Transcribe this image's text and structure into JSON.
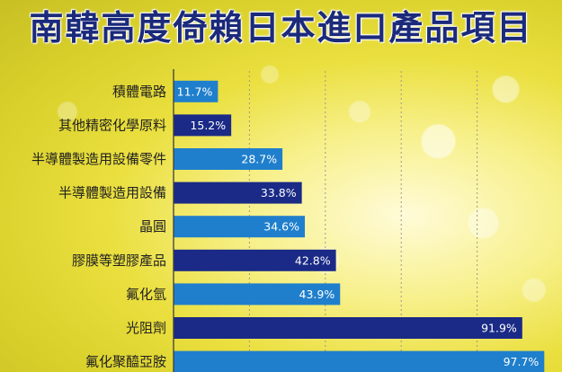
{
  "title": "南韓高度倚賴日本進口產品項目",
  "chart_data": {
    "type": "bar",
    "orientation": "horizontal",
    "title": "南韓高度倚賴日本進口產品項目",
    "xlabel": "",
    "ylabel": "",
    "xlim": [
      0,
      100
    ],
    "grid": true,
    "categories": [
      "積體電路",
      "其他精密化學原料",
      "半導體製造用設備零件",
      "半導體製造用設備",
      "晶圓",
      "膠膜等塑膠產品",
      "氟化氫",
      "光阻劑",
      "氟化聚醯亞胺"
    ],
    "values": [
      11.7,
      15.2,
      28.7,
      33.8,
      34.6,
      42.8,
      43.9,
      91.9,
      97.7
    ],
    "value_labels": [
      "11.7%",
      "15.2%",
      "28.7%",
      "33.8%",
      "34.6%",
      "42.8%",
      "43.9%",
      "91.9%",
      "97.7%"
    ],
    "colors": [
      "#1f7fcc",
      "#1a2a86",
      "#1f7fcc",
      "#1a2a86",
      "#1f7fcc",
      "#1a2a86",
      "#1f7fcc",
      "#1a2a86",
      "#1f7fcc"
    ]
  }
}
